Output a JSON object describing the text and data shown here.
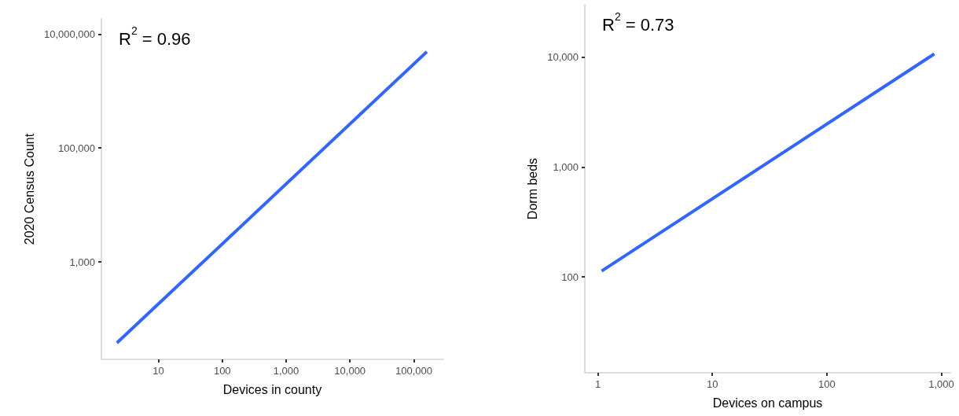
{
  "chart_data": [
    {
      "type": "line",
      "xlabel": "Devices in county",
      "ylabel": "2020 Census Count",
      "log": "xy",
      "grid": false,
      "marker": "none",
      "line_style": "solid",
      "annotations": [
        "R$^{2}$ = 0.96"
      ],
      "x": [
        2.24,
        160000
      ],
      "series": [
        {
          "color": "#3366ff",
          "values": [
            38,
            4900000
          ]
        }
      ],
      "xlim": [
        1.28,
        290000
      ],
      "ylim": [
        19.5,
        18500000
      ],
      "xticks": [
        {
          "value": 10,
          "label": "10"
        },
        {
          "value": 100,
          "label": "100"
        },
        {
          "value": 1000,
          "label": "1,000"
        },
        {
          "value": 10000,
          "label": "10,000"
        },
        {
          "value": 100000,
          "label": "100,000"
        }
      ],
      "yticks": [
        {
          "value": 1000,
          "label": "1,000"
        },
        {
          "value": 100000,
          "label": "100,000"
        },
        {
          "value": 10000000,
          "label": "10,000,000"
        }
      ]
    },
    {
      "type": "line",
      "xlabel": "Devices on campus",
      "ylabel": "Dorm beds",
      "log": "xy",
      "grid": false,
      "marker": "none",
      "line_style": "solid",
      "annotations": [
        "R$^{2}$ = 0.73"
      ],
      "x": [
        1.08,
        870
      ],
      "series": [
        {
          "color": "#3366ff",
          "values": [
            113,
            10700
          ]
        }
      ],
      "xlim": [
        0.77,
        1200
      ],
      "ylim": [
        13.4,
        30000
      ],
      "xticks": [
        {
          "value": 1,
          "label": "1"
        },
        {
          "value": 10,
          "label": "10"
        },
        {
          "value": 100,
          "label": "100"
        },
        {
          "value": 1000,
          "label": "1,000"
        }
      ],
      "yticks": [
        {
          "value": 100,
          "label": "100"
        },
        {
          "value": 1000,
          "label": "1,000"
        },
        {
          "value": 10000,
          "label": "10,000"
        }
      ]
    }
  ]
}
